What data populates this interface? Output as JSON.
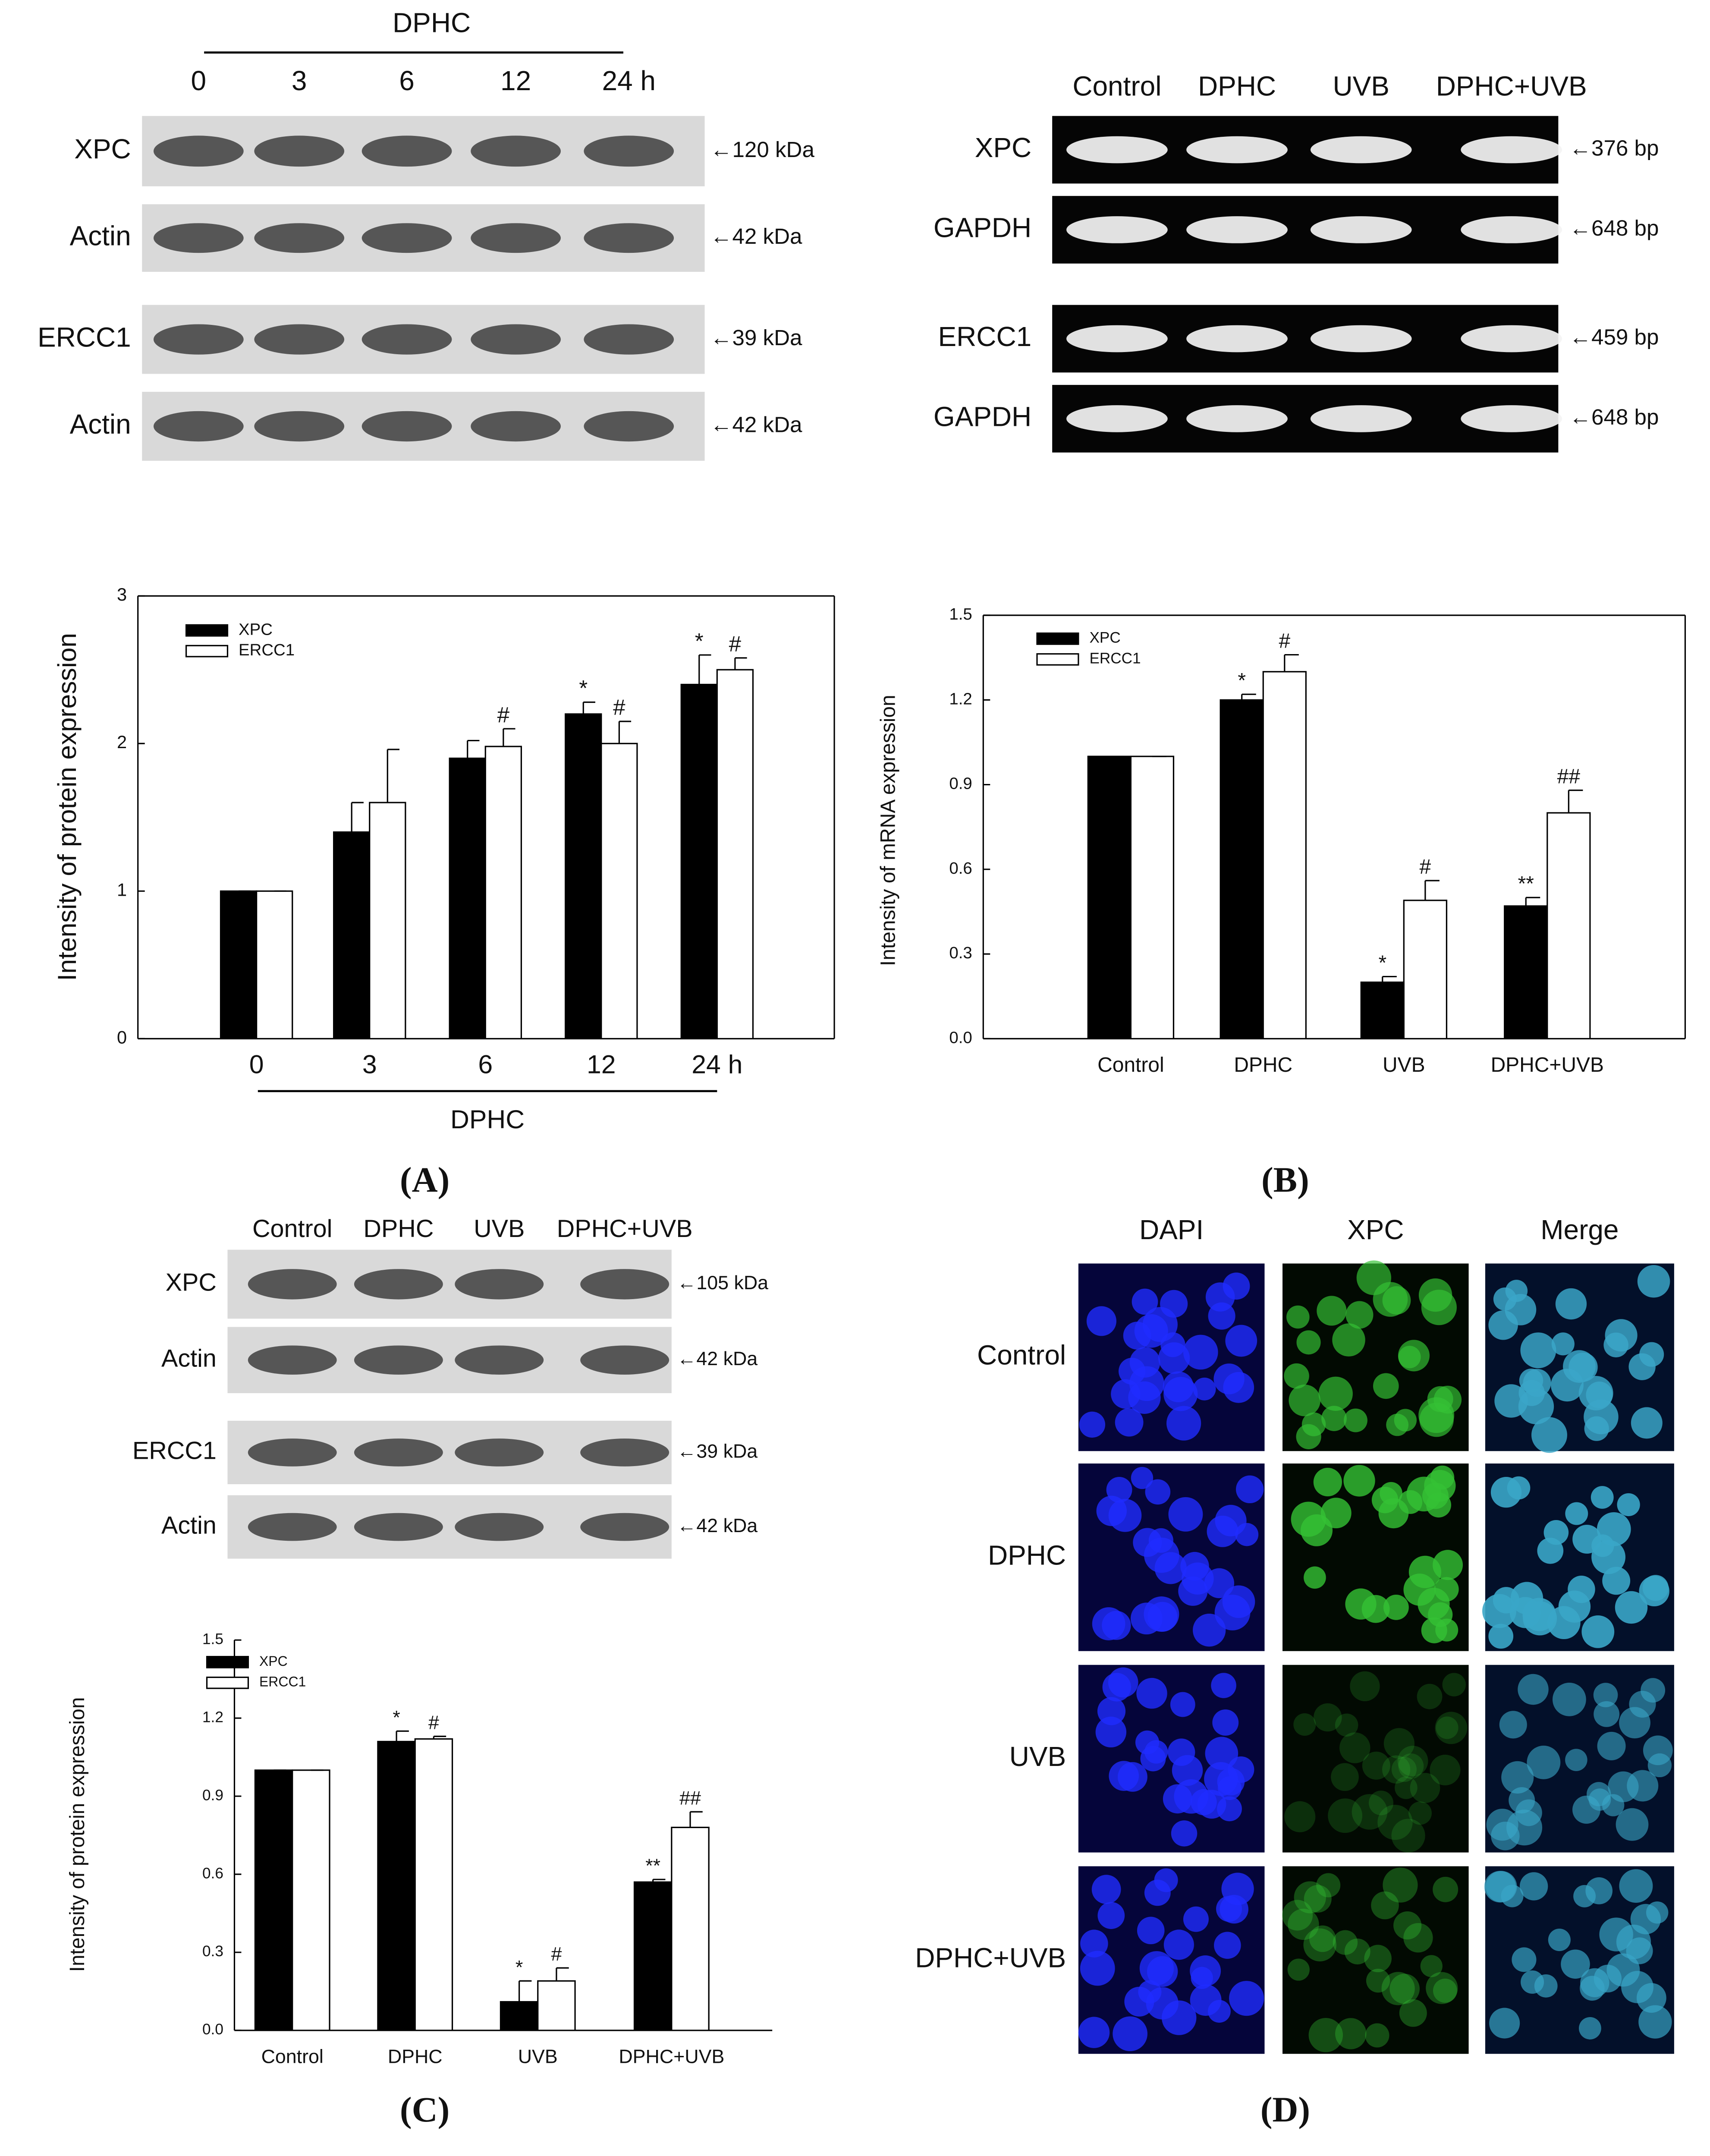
{
  "chart_data": [
    {
      "type": "bar",
      "panel_label": "(A)",
      "ylabel": "Intensity of protein expression",
      "xlabel": "DPHC",
      "categories": [
        "0",
        "3",
        "6",
        "12",
        "24 h"
      ],
      "series": [
        {
          "name": "XPC",
          "color": "#000000",
          "values": [
            1,
            1.4,
            1.9,
            2.2,
            2.4
          ],
          "errors": [
            0,
            0.2,
            0.12,
            0.08,
            0.2
          ],
          "significance": [
            null,
            null,
            null,
            "*",
            "*"
          ]
        },
        {
          "name": "ERCC1",
          "color": "#ffffff",
          "values": [
            1,
            1.6,
            1.98,
            2.0,
            2.5
          ],
          "errors": [
            0,
            0.36,
            0.12,
            0.15,
            0.08
          ],
          "significance": [
            null,
            null,
            "#",
            "#",
            "#"
          ]
        }
      ],
      "ylim": [
        0,
        3
      ],
      "yticks": [
        0,
        1,
        2,
        3
      ],
      "legend": "upper left"
    },
    {
      "type": "bar",
      "panel_label": "(B)",
      "ylabel": "Intensity of mRNA expression",
      "categories": [
        "Control",
        "DPHC",
        "UVB",
        "DPHC+UVB"
      ],
      "series": [
        {
          "name": "XPC",
          "color": "#000000",
          "values": [
            1,
            1.2,
            0.2,
            0.47
          ],
          "errors": [
            0,
            0.02,
            0.02,
            0.03
          ],
          "significance": [
            null,
            "*",
            "*",
            "**"
          ]
        },
        {
          "name": "ERCC1",
          "color": "#ffffff",
          "values": [
            1,
            1.3,
            0.49,
            0.8
          ],
          "errors": [
            0,
            0.06,
            0.07,
            0.08
          ],
          "significance": [
            null,
            "#",
            "#",
            "##"
          ]
        }
      ],
      "ylim": [
        0,
        1.5
      ],
      "yticks": [
        {
          "value": 0,
          "label": "0.0"
        },
        0.3,
        0.6,
        0.9,
        1.2,
        1.5
      ],
      "legend": "upper left"
    },
    {
      "type": "bar",
      "panel_label": "(C)",
      "ylabel": "Intensity  of protein expression",
      "categories": [
        "Control",
        "DPHC",
        "UVB",
        "DPHC+UVB"
      ],
      "series": [
        {
          "name": "XPC",
          "color": "#000000",
          "values": [
            1,
            1.11,
            0.11,
            0.57
          ],
          "errors": [
            0,
            0.04,
            0.08,
            0.01
          ],
          "significance": [
            null,
            "*",
            "*",
            "**"
          ]
        },
        {
          "name": "ERCC1",
          "color": "#ffffff",
          "values": [
            1,
            1.12,
            0.19,
            0.78
          ],
          "errors": [
            0,
            0.01,
            0.05,
            0.06
          ],
          "significance": [
            null,
            "#",
            "#",
            "##"
          ]
        }
      ],
      "ylim": [
        0,
        1.5
      ],
      "yticks": [
        {
          "value": 0,
          "label": "0.0"
        },
        0.3,
        0.6,
        0.9,
        1.2,
        1.5
      ],
      "legend": "upper left"
    }
  ],
  "blots": [
    {
      "header": "DPHC",
      "lanes": [
        "0",
        "3",
        "6",
        "12",
        "24 h"
      ],
      "rows": [
        {
          "label": "XPC",
          "size": "←120 kDa"
        },
        {
          "label": "Actin",
          "size": "←42 kDa"
        },
        {
          "label": "ERCC1",
          "size": "←39 kDa"
        },
        {
          "label": "Actin",
          "size": "←42 kDa"
        }
      ]
    },
    {
      "lanes": [
        "Control",
        "DPHC",
        "UVB",
        "DPHC+UVB"
      ],
      "rows": [
        {
          "label": "XPC",
          "size": "←376 bp"
        },
        {
          "label": "GAPDH",
          "size": "←648 bp"
        },
        {
          "label": "ERCC1",
          "size": "←459 bp"
        },
        {
          "label": "GAPDH",
          "size": "←648 bp"
        }
      ]
    },
    {
      "lanes": [
        "Control",
        "DPHC",
        "UVB",
        "DPHC+UVB"
      ],
      "rows": [
        {
          "label": "XPC",
          "size": "←105 kDa"
        },
        {
          "label": "Actin",
          "size": "←42 kDa"
        },
        {
          "label": "ERCC1",
          "size": "←39 kDa"
        },
        {
          "label": "Actin",
          "size": "←42 kDa"
        }
      ]
    }
  ],
  "panel_d": {
    "panel_label": "(D)",
    "columns": [
      "DAPI",
      "XPC",
      "Merge"
    ],
    "rows": [
      "Control",
      "DPHC",
      "UVB",
      "DPHC+UVB"
    ]
  }
}
